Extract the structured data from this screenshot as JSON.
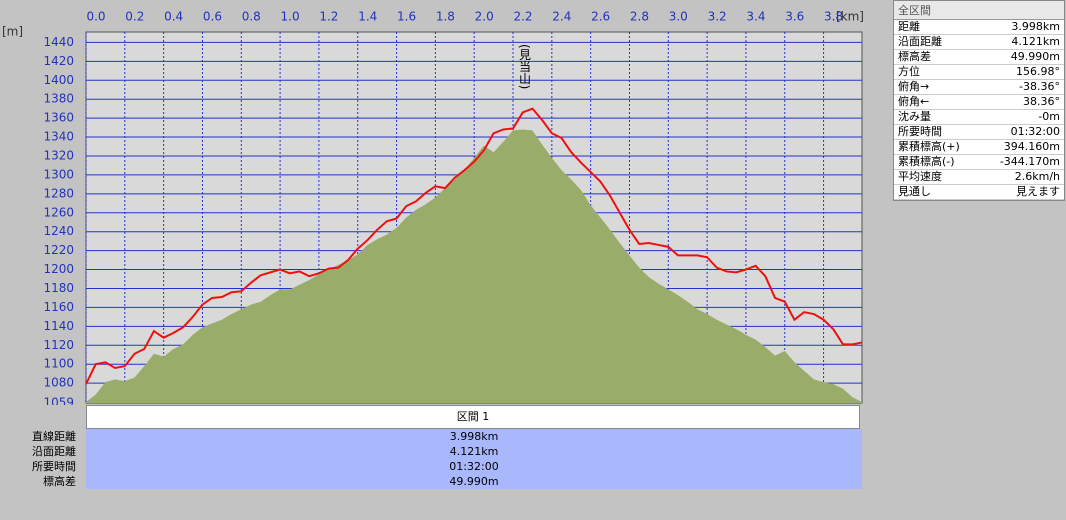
{
  "chart_data": {
    "type": "area-line",
    "x_unit": "[km]",
    "y_unit": "[m]",
    "annotation": "(見当山)",
    "x": [
      0,
      0.05,
      0.1,
      0.15,
      0.2,
      0.25,
      0.3,
      0.35,
      0.4,
      0.45,
      0.5,
      0.55,
      0.6,
      0.65,
      0.7,
      0.75,
      0.8,
      0.85,
      0.9,
      0.95,
      1.0,
      1.05,
      1.1,
      1.15,
      1.2,
      1.25,
      1.3,
      1.35,
      1.4,
      1.45,
      1.5,
      1.55,
      1.6,
      1.65,
      1.7,
      1.75,
      1.8,
      1.85,
      1.9,
      1.95,
      2.0,
      2.05,
      2.1,
      2.15,
      2.2,
      2.25,
      2.3,
      2.35,
      2.4,
      2.45,
      2.5,
      2.55,
      2.6,
      2.65,
      2.7,
      2.75,
      2.8,
      2.85,
      2.9,
      2.95,
      3.0,
      3.05,
      3.1,
      3.15,
      3.2,
      3.25,
      3.3,
      3.35,
      3.4,
      3.45,
      3.5,
      3.55,
      3.6,
      3.65,
      3.7,
      3.75,
      3.8,
      3.85,
      3.9,
      3.95,
      3.998
    ],
    "series": [
      {
        "kind": "area",
        "color": "#9aac6a",
        "values": [
          1060,
          1068,
          1081,
          1084,
          1082,
          1086,
          1098,
          1111,
          1108,
          1116,
          1121,
          1131,
          1139,
          1143,
          1147,
          1153,
          1158,
          1163,
          1166,
          1173,
          1179,
          1179,
          1184,
          1189,
          1195,
          1200,
          1205,
          1210,
          1216,
          1226,
          1232,
          1237,
          1244,
          1255,
          1263,
          1269,
          1276,
          1286,
          1295,
          1305,
          1318,
          1331,
          1324,
          1335,
          1347,
          1348,
          1347,
          1332,
          1318,
          1305,
          1295,
          1284,
          1268,
          1255,
          1242,
          1228,
          1215,
          1202,
          1192,
          1185,
          1179,
          1173,
          1166,
          1158,
          1153,
          1147,
          1142,
          1137,
          1131,
          1126,
          1118,
          1109,
          1114,
          1102,
          1093,
          1084,
          1081,
          1079,
          1074,
          1065,
          1060
        ]
      },
      {
        "kind": "line",
        "color": "#ee1111",
        "values": [
          1079,
          1100,
          1102,
          1096,
          1098,
          1111,
          1116,
          1135,
          1128,
          1133,
          1139,
          1150,
          1163,
          1170,
          1171,
          1176,
          1177,
          1186,
          1194,
          1197,
          1200,
          1196,
          1198,
          1193,
          1196,
          1201,
          1202,
          1210,
          1222,
          1231,
          1242,
          1251,
          1254,
          1267,
          1272,
          1281,
          1288,
          1286,
          1297,
          1305,
          1314,
          1326,
          1344,
          1348,
          1349,
          1366,
          1370,
          1358,
          1344,
          1339,
          1324,
          1313,
          1303,
          1293,
          1278,
          1260,
          1242,
          1227,
          1228,
          1226,
          1224,
          1215,
          1215,
          1215,
          1213,
          1202,
          1198,
          1197,
          1200,
          1204,
          1193,
          1170,
          1166,
          1147,
          1155,
          1153,
          1147,
          1137,
          1121,
          1121,
          1123
        ]
      }
    ],
    "xlim": [
      0,
      3.998
    ],
    "ylim": [
      1059,
      1451
    ],
    "xticks": [
      {
        "value": 0,
        "label": "0.0"
      },
      0.2,
      0.4,
      0.6,
      0.8,
      {
        "value": 1,
        "label": "1.0"
      },
      1.2,
      1.4,
      1.6,
      1.8,
      {
        "value": 2,
        "label": "2.0"
      },
      2.2,
      2.4,
      2.6,
      2.8,
      {
        "value": 3,
        "label": "3.0"
      },
      3.2,
      3.4,
      3.6,
      3.8
    ],
    "yticks": [
      1059,
      1080,
      1100,
      1120,
      1140,
      1160,
      1180,
      1200,
      1220,
      1240,
      1260,
      1280,
      1300,
      1320,
      1340,
      1360,
      1380,
      1400,
      1420,
      1440
    ],
    "grid": true
  },
  "summary": {
    "title": "全区間",
    "rows": [
      [
        "距離",
        "3.998km"
      ],
      [
        "沿面距離",
        "4.121km"
      ],
      [
        "標高差",
        "49.990m"
      ],
      [
        "方位",
        "156.98°"
      ],
      [
        "俯角→",
        "-38.36°"
      ],
      [
        "俯角←",
        "38.36°"
      ],
      [
        "沈み量",
        "-0m"
      ],
      [
        "所要時間",
        "01:32:00"
      ],
      [
        "累積標高(+)",
        "394.160m"
      ],
      [
        "累積標高(-)",
        "-344.170m"
      ],
      [
        "平均速度",
        "2.6km/h"
      ],
      [
        "見通し",
        "見えます"
      ]
    ]
  },
  "section": {
    "header": "区間 1",
    "rows": [
      [
        "直線距離",
        "3.998km"
      ],
      [
        "沿面距離",
        "4.121km"
      ],
      [
        "所要時間",
        "01:32:00"
      ],
      [
        "標高差",
        "49.990m"
      ]
    ]
  }
}
